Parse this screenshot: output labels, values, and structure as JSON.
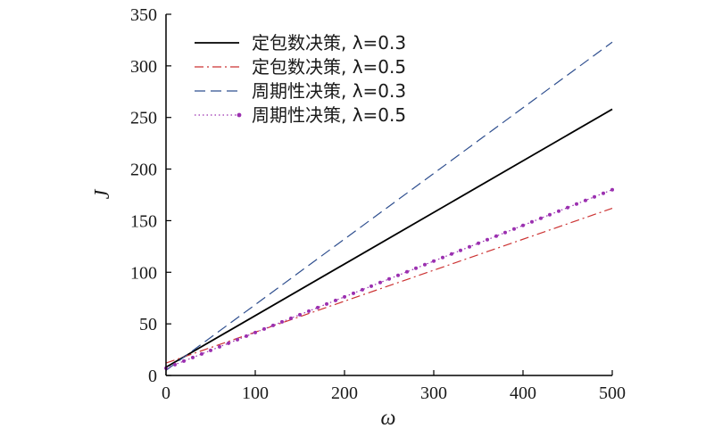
{
  "chart_data": {
    "type": "line",
    "title": "",
    "xlabel": "ω",
    "ylabel": "J",
    "xlim": [
      0,
      500
    ],
    "ylim": [
      0,
      350
    ],
    "x_ticks": [
      0,
      100,
      200,
      300,
      400,
      500
    ],
    "y_ticks": [
      0,
      50,
      100,
      150,
      200,
      250,
      300,
      350
    ],
    "x_tick_labels": [
      "0",
      "100",
      "200",
      "300",
      "400",
      "500"
    ],
    "y_tick_labels": [
      "0",
      "50",
      "100",
      "150",
      "200",
      "250",
      "300",
      "350"
    ],
    "grid": false,
    "legend_position": "top-left",
    "series": [
      {
        "name": "定包数决策, λ=0.3",
        "color": "#000000",
        "style": "solid",
        "x": [
          0,
          500
        ],
        "y": [
          8,
          258
        ]
      },
      {
        "name": "定包数决策, λ=0.5",
        "color": "#cc3333",
        "style": "dashdot",
        "x": [
          0,
          500
        ],
        "y": [
          12,
          162
        ]
      },
      {
        "name": "周期性决策, λ=0.3",
        "color": "#2f4f8f",
        "style": "dashed",
        "x": [
          0,
          500
        ],
        "y": [
          5,
          323
        ]
      },
      {
        "name": "周期性决策, λ=0.5",
        "color": "#9b30b0",
        "style": "dotted-marker",
        "x": [
          0,
          500
        ],
        "y": [
          7,
          180
        ]
      }
    ]
  }
}
